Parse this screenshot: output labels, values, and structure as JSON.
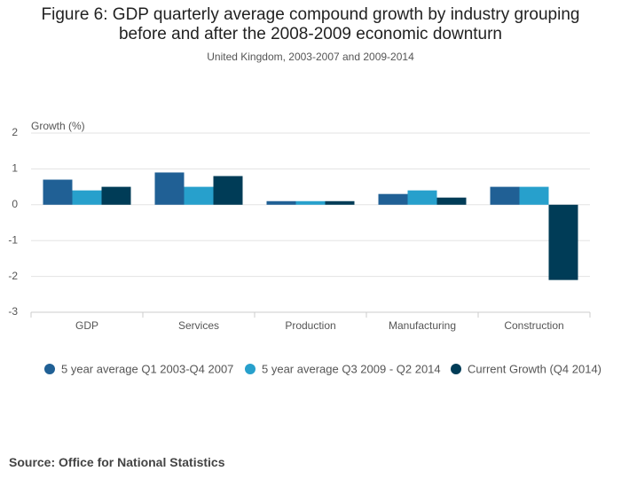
{
  "chart_data": {
    "type": "bar",
    "title": "Figure 6: GDP quarterly average compound growth by industry grouping before and after the 2008-2009 economic downturn",
    "subtitle": "United Kingdom, 2003-2007 and 2009-2014",
    "y_label": "Growth (%)",
    "categories": [
      "GDP",
      "Services",
      "Production",
      "Manufacturing",
      "Construction"
    ],
    "series": [
      {
        "name": "5 year average Q1 2003-Q4 2007",
        "color": "#206095",
        "values": [
          0.7,
          0.9,
          0.1,
          0.3,
          0.5
        ]
      },
      {
        "name": "5 year average Q3 2009 - Q2 2014",
        "color": "#27a0cc",
        "values": [
          0.4,
          0.5,
          0.1,
          0.4,
          0.5
        ]
      },
      {
        "name": "Current Growth (Q4 2014)",
        "color": "#003c57",
        "values": [
          0.5,
          0.8,
          0.1,
          0.2,
          -2.1
        ]
      }
    ],
    "ylim": [
      -3,
      2
    ],
    "yticks": [
      -3,
      -2,
      -1,
      0,
      1,
      2
    ],
    "grid": true,
    "source": "Source: Office for National Statistics"
  }
}
